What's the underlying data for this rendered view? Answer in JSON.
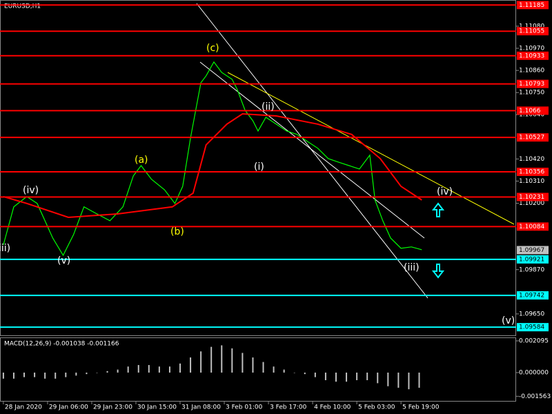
{
  "chart_data": [
    {
      "type": "line",
      "title": "EURUSD,H1",
      "xlim": [
        -1.3,
        197.3
      ],
      "ylim": [
        1.0954,
        1.1121
      ],
      "xticks": [
        {
          "value": 0,
          "label": "28 Jan 2020"
        },
        {
          "value": 17,
          "label": "29 Jan 06:00"
        },
        {
          "value": 34,
          "label": "29 Jan 23:00"
        },
        {
          "value": 51,
          "label": "30 Jan 15:00"
        },
        {
          "value": 68,
          "label": "31 Jan 08:00"
        },
        {
          "value": 85,
          "label": "3 Feb 01:00"
        },
        {
          "value": 102,
          "label": "3 Feb 17:00"
        },
        {
          "value": 119,
          "label": "4 Feb 10:00"
        },
        {
          "value": 136,
          "label": "5 Feb 03:00"
        },
        {
          "value": 153,
          "label": "5 Feb 19:00"
        }
      ],
      "yticks": [
        {
          "value": 1.1108,
          "label": "1.11080"
        },
        {
          "value": 1.1097,
          "label": "1.10970"
        },
        {
          "value": 1.1086,
          "label": "1.10860"
        },
        {
          "value": 1.1075,
          "label": "1.10750"
        },
        {
          "value": 1.1064,
          "label": "1.10640"
        },
        {
          "value": 1.1042,
          "label": "1.10420"
        },
        {
          "value": 1.1031,
          "label": "1.10310"
        },
        {
          "value": 1.102,
          "label": "1.10200"
        },
        {
          "value": 1.0987,
          "label": "1.09870"
        },
        {
          "value": 1.0965,
          "label": "1.09650"
        }
      ],
      "series": [
        {
          "color": "#00ff00",
          "x": [
            0,
            4,
            9,
            13,
            19,
            23,
            27,
            31,
            36,
            41,
            46,
            50,
            53,
            57,
            62,
            66,
            69,
            72,
            76,
            78,
            81,
            84,
            88,
            90,
            93,
            96,
            98,
            101,
            105,
            109,
            113,
            117,
            121,
            125,
            129,
            133,
            137,
            141,
            143,
            146,
            149,
            153,
            157,
            161
          ],
          "values": [
            1.09993,
            1.10182,
            1.10233,
            1.10199,
            1.10027,
            1.09941,
            1.10044,
            1.10182,
            1.10147,
            1.10113,
            1.10182,
            1.10336,
            1.10387,
            1.10319,
            1.10267,
            1.10199,
            1.10284,
            1.10524,
            1.10799,
            1.10833,
            1.10902,
            1.1085,
            1.10816,
            1.10765,
            1.10662,
            1.1061,
            1.10559,
            1.10627,
            1.10593,
            1.10559,
            1.10542,
            1.10507,
            1.10473,
            1.10422,
            1.10404,
            1.10387,
            1.1037,
            1.10439,
            1.10216,
            1.10113,
            1.10027,
            1.09976,
            1.09983,
            1.09969
          ]
        },
        {
          "color": "#ff0000",
          "x": [
            0,
            9,
            25,
            44,
            65,
            73,
            78,
            86,
            92,
            105,
            121,
            134,
            145,
            153,
            161
          ],
          "values": [
            1.10233,
            1.10199,
            1.1013,
            1.10147,
            1.10182,
            1.1025,
            1.1049,
            1.10593,
            1.10644,
            1.10634,
            1.10593,
            1.10542,
            1.10422,
            1.10284,
            1.10216
          ]
        }
      ],
      "levels": [
        {
          "value": 1.11185,
          "color": "#ff0000"
        },
        {
          "value": 1.11055,
          "color": "#ff0000"
        },
        {
          "value": 1.10933,
          "color": "#ff0000"
        },
        {
          "value": 1.10793,
          "color": "#ff0000"
        },
        {
          "value": 1.1066,
          "color": "#ff0000"
        },
        {
          "value": 1.10527,
          "color": "#ff0000"
        },
        {
          "value": 1.10356,
          "color": "#ff0000"
        },
        {
          "value": 1.10231,
          "color": "#ff0000"
        },
        {
          "value": 1.10084,
          "color": "#ff0000"
        },
        {
          "value": 1.09921,
          "color": "#00ffff"
        },
        {
          "value": 1.09742,
          "color": "#00ffff"
        },
        {
          "value": 1.09584,
          "color": "#00ffff"
        }
      ],
      "price": 1.09967,
      "annotations": [
        {
          "text": "iii)",
          "color": "#ffffff"
        },
        {
          "text": "(iv)",
          "color": "#ffffff"
        },
        {
          "text": "(v)",
          "color": "#ffffff"
        },
        {
          "text": "(a)",
          "color": "#ffff00"
        },
        {
          "text": "(b)",
          "color": "#ffff00"
        },
        {
          "text": "(c)",
          "color": "#ffff00"
        },
        {
          "text": "(ii)",
          "color": "#ffffff"
        },
        {
          "text": "(i)",
          "color": "#ffffff"
        },
        {
          "text": "(iii)",
          "color": "#ffffff"
        },
        {
          "text": "(iv)",
          "color": "#ffffff"
        },
        {
          "text": "(v)",
          "color": "#ffffff"
        }
      ]
    },
    {
      "type": "bar",
      "title": "MACD(12,26,9) -0.001038 -0.001166",
      "color": "#c0c0c0",
      "ylim": [
        -0.001913,
        0.002277
      ],
      "yticks": [
        0.002095,
        {
          "value": 0,
          "label": "0.000000"
        },
        -0.001563
      ],
      "x": [
        0,
        4,
        8,
        12,
        16,
        20,
        24,
        28,
        32,
        36,
        40,
        44,
        48,
        52,
        56,
        60,
        64,
        68,
        72,
        76,
        80,
        84,
        88,
        92,
        96,
        100,
        104,
        108,
        112,
        116,
        120,
        124,
        128,
        132,
        136,
        140,
        144,
        148,
        152,
        156,
        160
      ],
      "values": [
        -0.0004,
        -0.0004,
        -0.0003,
        -0.0003,
        -0.0004,
        -0.0004,
        -0.0003,
        -0.0002,
        -0.0001,
        0.0,
        0.0001,
        0.0002,
        0.0004,
        0.0005,
        0.0005,
        0.0004,
        0.0004,
        0.0006,
        0.001,
        0.0014,
        0.0017,
        0.0018,
        0.0016,
        0.0013,
        0.001,
        0.0007,
        0.0004,
        0.0002,
        0.0,
        -0.0001,
        -0.0003,
        -0.0005,
        -0.0006,
        -0.0006,
        -0.0005,
        -0.0005,
        -0.0007,
        -0.0009,
        -0.001,
        -0.0011,
        -0.001
      ]
    }
  ]
}
